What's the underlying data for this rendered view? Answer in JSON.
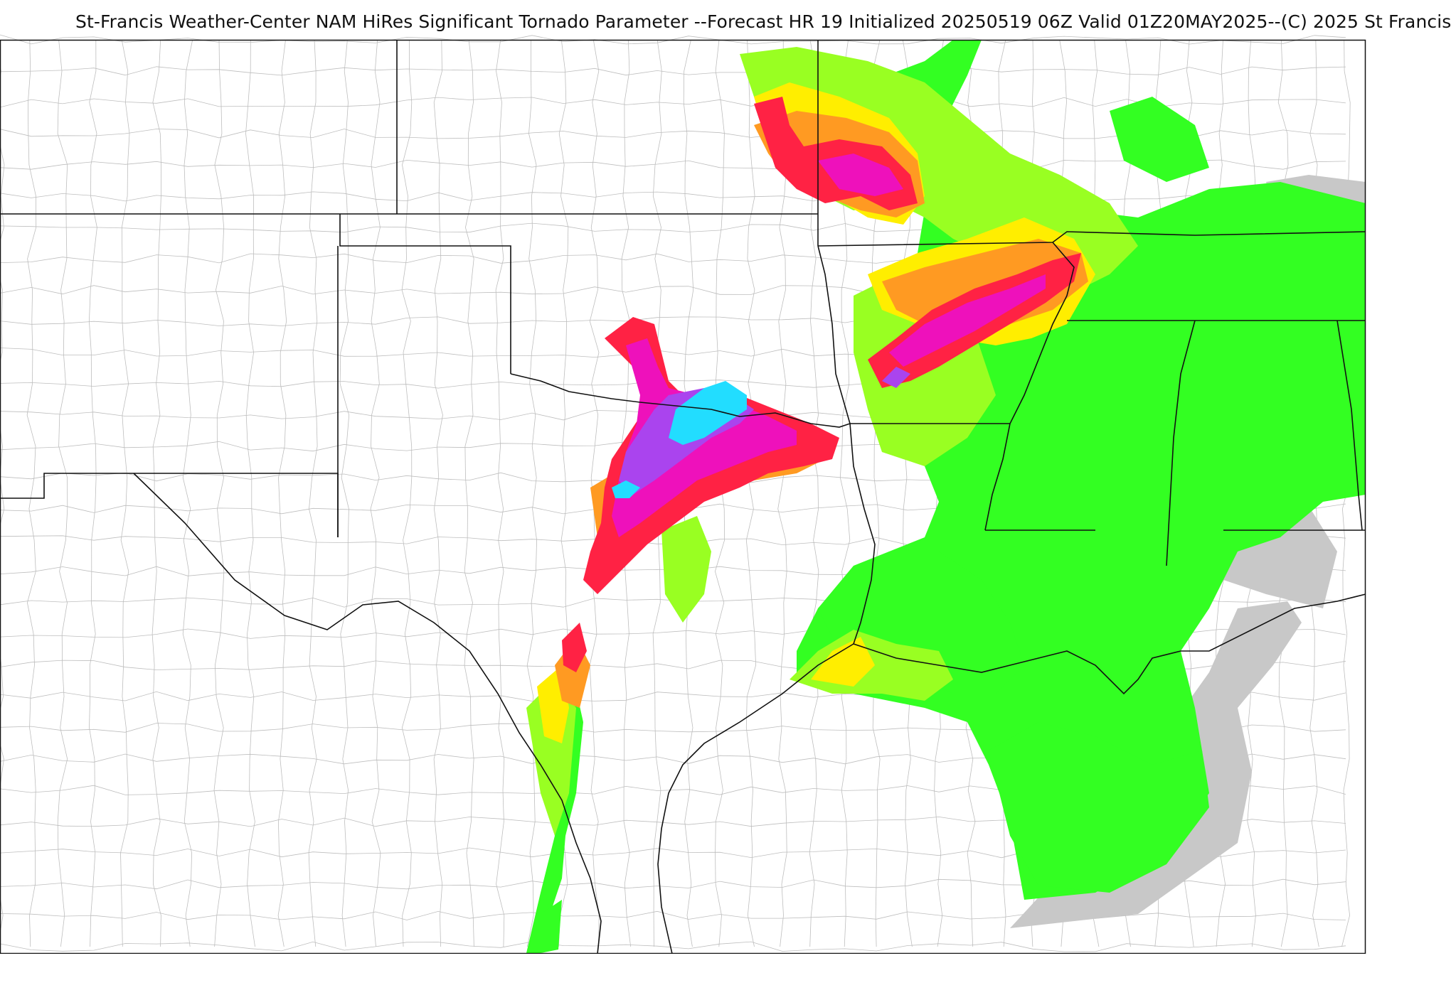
{
  "header": {
    "title": "St-Francis Weather-Center NAM HiRes Significant Tornado Parameter --Forecast HR 19 Initialized 20250519 06Z Valid 01Z20MAY2025--(C) 2025 St Francis"
  },
  "map": {
    "product": "Significant Tornado Parameter",
    "background_color": "#ffffff",
    "boundary_color": "#111111",
    "county_color": "#9a9a9a",
    "shading_palette": {
      "grey": "#c8c8c8",
      "light_green": "#33ff22",
      "yellow_green": "#99ff22",
      "yellow": "#ffee00",
      "orange": "#ff9a22",
      "red": "#ff2244",
      "magenta": "#ee11bb",
      "purple": "#aa44ee",
      "cyan": "#22ddff"
    }
  }
}
